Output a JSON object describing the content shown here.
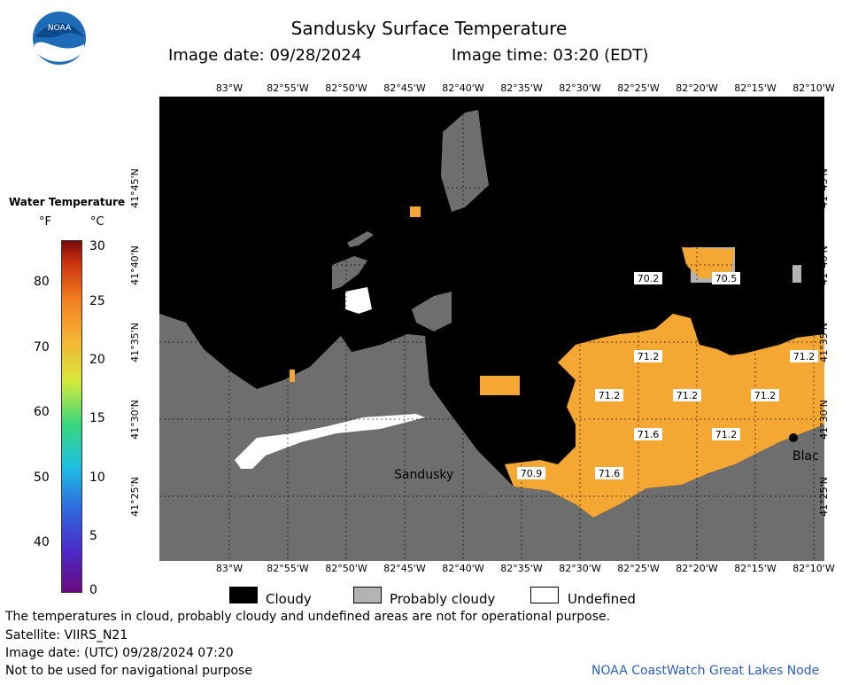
{
  "header": {
    "title": "Sandusky Surface Temperature",
    "image_date": "Image date: 09/28/2024",
    "image_time": "Image time: 03:20 (EDT)",
    "logo_text": "NOAA"
  },
  "colorbar": {
    "title": "Water Temperature",
    "unit_f": "°F",
    "unit_c": "°C",
    "f_ticks": [
      "80",
      "70",
      "60",
      "50",
      "40"
    ],
    "c_ticks": [
      "30",
      "25",
      "20",
      "15",
      "10",
      "5",
      "0"
    ],
    "c_range": [
      0,
      30
    ]
  },
  "map": {
    "lon_labels": [
      "83°W",
      "82°55'W",
      "82°50'W",
      "82°45'W",
      "82°40'W",
      "82°35'W",
      "82°30'W",
      "82°25'W",
      "82°20'W",
      "82°15'W",
      "82°10'W"
    ],
    "lat_labels": [
      "41°45'N",
      "41°40'N",
      "41°35'N",
      "41°30'N",
      "41°25'N"
    ],
    "place_labels": [
      "Sandusky",
      "Blac"
    ],
    "temps": [
      "70.2",
      "70.5",
      "71.2",
      "71.2",
      "71.2",
      "71.2",
      "71.2",
      "71.6",
      "71.2",
      "70.9",
      "71.6"
    ],
    "colors": {
      "cloud": "#000000",
      "land": "#6e6e6e",
      "prob_cloud": "#b3b3b3",
      "warm_water": "#f5a733",
      "undefined": "#ffffff"
    }
  },
  "legend": {
    "cloudy": "Cloudy",
    "probably_cloudy": "Probably cloudy",
    "undefined": "Undefined"
  },
  "footer": {
    "disclaimer": "The temperatures in cloud, probably cloudy and undefined areas are not for operational purpose.",
    "satellite": "Satellite: VIIRS_N21",
    "utc_date": "Image date: (UTC) 09/28/2024  07:20",
    "nav_warning": "Not to be used for navigational purpose",
    "credit": "NOAA CoastWatch Great Lakes Node"
  }
}
